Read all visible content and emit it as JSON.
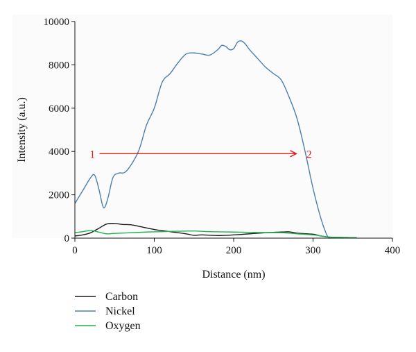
{
  "chart_data": {
    "type": "line",
    "xlabel": "Distance (nm)",
    "ylabel": "Intensity (a.u.)",
    "xlim": [
      0,
      400
    ],
    "ylim": [
      0,
      10000
    ],
    "x_ticks": [
      "0",
      "100",
      "200",
      "300",
      "400"
    ],
    "y_ticks": [
      "0",
      "2000",
      "4000",
      "6000",
      "8000",
      "10000"
    ],
    "grid": false,
    "legend_position": "bottom-left",
    "series": [
      {
        "name": "Carbon",
        "color": "#1a1a1a",
        "points": [
          [
            0,
            100
          ],
          [
            10,
            150
          ],
          [
            20,
            250
          ],
          [
            30,
            450
          ],
          [
            40,
            650
          ],
          [
            50,
            680
          ],
          [
            60,
            630
          ],
          [
            70,
            620
          ],
          [
            80,
            550
          ],
          [
            100,
            400
          ],
          [
            120,
            300
          ],
          [
            140,
            200
          ],
          [
            150,
            130
          ],
          [
            160,
            150
          ],
          [
            180,
            120
          ],
          [
            200,
            150
          ],
          [
            220,
            200
          ],
          [
            240,
            250
          ],
          [
            260,
            280
          ],
          [
            270,
            290
          ],
          [
            280,
            230
          ],
          [
            300,
            180
          ],
          [
            310,
            100
          ],
          [
            320,
            50
          ],
          [
            340,
            30
          ],
          [
            355,
            20
          ]
        ]
      },
      {
        "name": "Nickel",
        "color": "#4a7eb0",
        "points": [
          [
            0,
            1600
          ],
          [
            10,
            2200
          ],
          [
            20,
            2800
          ],
          [
            25,
            2900
          ],
          [
            30,
            2300
          ],
          [
            35,
            1500
          ],
          [
            38,
            1450
          ],
          [
            42,
            1900
          ],
          [
            48,
            2800
          ],
          [
            55,
            3000
          ],
          [
            65,
            3100
          ],
          [
            80,
            4000
          ],
          [
            90,
            5200
          ],
          [
            100,
            6000
          ],
          [
            110,
            7200
          ],
          [
            120,
            7600
          ],
          [
            130,
            8100
          ],
          [
            140,
            8500
          ],
          [
            150,
            8550
          ],
          [
            160,
            8500
          ],
          [
            170,
            8450
          ],
          [
            180,
            8700
          ],
          [
            185,
            8900
          ],
          [
            190,
            8850
          ],
          [
            195,
            8700
          ],
          [
            200,
            8750
          ],
          [
            205,
            9050
          ],
          [
            210,
            9100
          ],
          [
            215,
            8950
          ],
          [
            220,
            8700
          ],
          [
            230,
            8300
          ],
          [
            240,
            7900
          ],
          [
            250,
            7600
          ],
          [
            260,
            7300
          ],
          [
            270,
            6500
          ],
          [
            280,
            5500
          ],
          [
            290,
            4000
          ],
          [
            300,
            2300
          ],
          [
            310,
            900
          ],
          [
            318,
            100
          ],
          [
            322,
            0
          ]
        ]
      },
      {
        "name": "Oxygen",
        "color": "#22b24c",
        "points": [
          [
            0,
            250
          ],
          [
            10,
            300
          ],
          [
            20,
            350
          ],
          [
            30,
            280
          ],
          [
            40,
            200
          ],
          [
            50,
            220
          ],
          [
            70,
            250
          ],
          [
            90,
            280
          ],
          [
            110,
            300
          ],
          [
            130,
            320
          ],
          [
            150,
            330
          ],
          [
            170,
            300
          ],
          [
            200,
            280
          ],
          [
            230,
            260
          ],
          [
            260,
            250
          ],
          [
            280,
            200
          ],
          [
            300,
            150
          ],
          [
            310,
            100
          ],
          [
            320,
            50
          ],
          [
            340,
            30
          ],
          [
            355,
            20
          ]
        ]
      }
    ],
    "annotations": [
      {
        "text": "1",
        "x": 22,
        "y": 3900
      },
      {
        "text": "2",
        "x": 295,
        "y": 3900
      }
    ],
    "arrow": {
      "from": [
        31,
        3900
      ],
      "to": [
        279,
        3900
      ],
      "color": "#e02020"
    }
  }
}
